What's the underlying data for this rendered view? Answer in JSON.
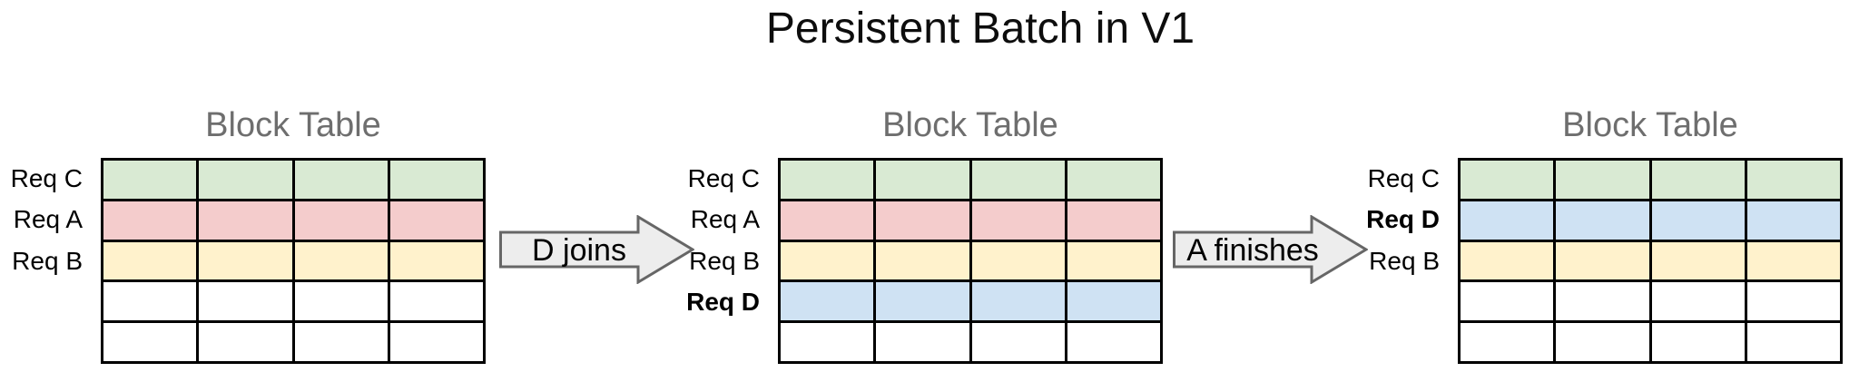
{
  "title": "Persistent Batch in V1",
  "panels": [
    {
      "title": "Block Table",
      "rows": [
        {
          "label": "Req C",
          "color": "green",
          "bold": false
        },
        {
          "label": "Req A",
          "color": "red",
          "bold": false
        },
        {
          "label": "Req B",
          "color": "yellow",
          "bold": false
        },
        {
          "label": "",
          "color": "white",
          "bold": false
        },
        {
          "label": "",
          "color": "white",
          "bold": false
        }
      ]
    },
    {
      "title": "Block Table",
      "rows": [
        {
          "label": "Req C",
          "color": "green",
          "bold": false
        },
        {
          "label": "Req A",
          "color": "red",
          "bold": false
        },
        {
          "label": "Req B",
          "color": "yellow",
          "bold": false
        },
        {
          "label": "Req D",
          "color": "blue",
          "bold": true
        },
        {
          "label": "",
          "color": "white",
          "bold": false
        }
      ]
    },
    {
      "title": "Block Table",
      "rows": [
        {
          "label": "Req C",
          "color": "green",
          "bold": false
        },
        {
          "label": "Req D",
          "color": "blue",
          "bold": true
        },
        {
          "label": "Req B",
          "color": "yellow",
          "bold": false
        },
        {
          "label": "",
          "color": "white",
          "bold": false
        },
        {
          "label": "",
          "color": "white",
          "bold": false
        }
      ]
    }
  ],
  "arrows": [
    {
      "label": "D joins"
    },
    {
      "label": "A finishes"
    }
  ],
  "grid": {
    "columns": 4,
    "rows": 5
  },
  "colors": {
    "green": "#d9ead3",
    "red": "#f4cccc",
    "yellow": "#fff2cc",
    "blue": "#cfe2f3",
    "white": "#ffffff",
    "grid_line": "#000000",
    "panel_title_text": "#6e6e6e",
    "arrow_fill": "#ededed",
    "arrow_border": "#666666"
  }
}
